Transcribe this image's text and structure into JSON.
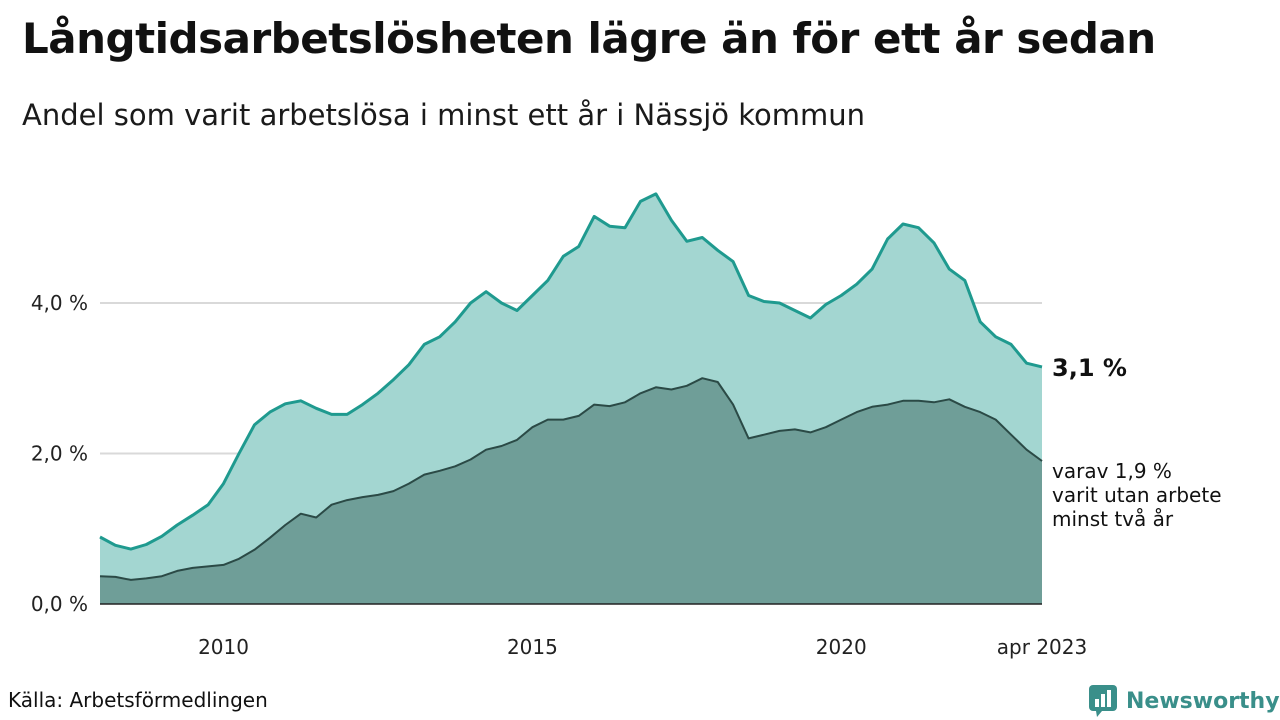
{
  "title": "Långtidsarbetslösheten lägre än för ett år sedan",
  "subtitle": "Andel som varit arbetslösa i minst ett år i Nässjö kommun",
  "source": "Källa: Arbetsförmedlingen",
  "brand": "Newsworthy",
  "colors": {
    "upper_fill": "#a3d6d1",
    "upper_line": "#1f9a8f",
    "lower_fill": "#6f9e98",
    "lower_line": "#2b4a46",
    "grid": "#d9d9d9",
    "brand": "#3a8f8a"
  },
  "chart_data": {
    "type": "area",
    "x_start": "2008-01",
    "x_end": "2023-04",
    "x_tick_labels": [
      "2010",
      "2015",
      "2020",
      "apr 2023"
    ],
    "x_tick_dates": [
      "2010-01",
      "2015-01",
      "2020-01",
      "2023-04"
    ],
    "y_tick_labels": [
      "0,0 %",
      "2,0 %",
      "4,0 %"
    ],
    "y_ticks": [
      0,
      2,
      4
    ],
    "ylim": [
      0,
      5.9
    ],
    "grid": true,
    "series": [
      {
        "label": "3,1 %",
        "points": [
          [
            "2008-01",
            0.89
          ],
          [
            "2008-04",
            0.78
          ],
          [
            "2008-07",
            0.73
          ],
          [
            "2008-10",
            0.79
          ],
          [
            "2009-01",
            0.9
          ],
          [
            "2009-04",
            1.05
          ],
          [
            "2009-07",
            1.18
          ],
          [
            "2009-10",
            1.32
          ],
          [
            "2010-01",
            1.6
          ],
          [
            "2010-04",
            2.0
          ],
          [
            "2010-07",
            2.38
          ],
          [
            "2010-10",
            2.55
          ],
          [
            "2011-01",
            2.66
          ],
          [
            "2011-04",
            2.7
          ],
          [
            "2011-07",
            2.6
          ],
          [
            "2011-10",
            2.52
          ],
          [
            "2012-01",
            2.52
          ],
          [
            "2012-04",
            2.65
          ],
          [
            "2012-07",
            2.8
          ],
          [
            "2012-10",
            2.98
          ],
          [
            "2013-01",
            3.18
          ],
          [
            "2013-04",
            3.45
          ],
          [
            "2013-07",
            3.55
          ],
          [
            "2013-10",
            3.75
          ],
          [
            "2014-01",
            4.0
          ],
          [
            "2014-04",
            4.15
          ],
          [
            "2014-07",
            4.0
          ],
          [
            "2014-10",
            3.9
          ],
          [
            "2015-01",
            4.1
          ],
          [
            "2015-04",
            4.3
          ],
          [
            "2015-07",
            4.62
          ],
          [
            "2015-10",
            4.75
          ],
          [
            "2016-01",
            5.15
          ],
          [
            "2016-04",
            5.02
          ],
          [
            "2016-07",
            5.0
          ],
          [
            "2016-10",
            5.35
          ],
          [
            "2017-01",
            5.45
          ],
          [
            "2017-04",
            5.1
          ],
          [
            "2017-07",
            4.82
          ],
          [
            "2017-10",
            4.87
          ],
          [
            "2018-01",
            4.7
          ],
          [
            "2018-04",
            4.55
          ],
          [
            "2018-07",
            4.1
          ],
          [
            "2018-10",
            4.02
          ],
          [
            "2019-01",
            4.0
          ],
          [
            "2019-04",
            3.9
          ],
          [
            "2019-07",
            3.8
          ],
          [
            "2019-10",
            3.98
          ],
          [
            "2020-01",
            4.1
          ],
          [
            "2020-04",
            4.25
          ],
          [
            "2020-07",
            4.45
          ],
          [
            "2020-10",
            4.85
          ],
          [
            "2021-01",
            5.05
          ],
          [
            "2021-04",
            5.0
          ],
          [
            "2021-07",
            4.8
          ],
          [
            "2021-10",
            4.45
          ],
          [
            "2022-01",
            4.3
          ],
          [
            "2022-04",
            3.75
          ],
          [
            "2022-07",
            3.55
          ],
          [
            "2022-10",
            3.45
          ],
          [
            "2023-01",
            3.2
          ],
          [
            "2023-04",
            3.15
          ]
        ]
      },
      {
        "label": "varav 1,9 %",
        "description": [
          "varav 1,9 %",
          "varit utan arbete",
          "minst två år"
        ],
        "points": [
          [
            "2008-01",
            0.37
          ],
          [
            "2008-04",
            0.36
          ],
          [
            "2008-07",
            0.32
          ],
          [
            "2008-10",
            0.34
          ],
          [
            "2009-01",
            0.37
          ],
          [
            "2009-04",
            0.44
          ],
          [
            "2009-07",
            0.48
          ],
          [
            "2009-10",
            0.5
          ],
          [
            "2010-01",
            0.52
          ],
          [
            "2010-04",
            0.6
          ],
          [
            "2010-07",
            0.72
          ],
          [
            "2010-10",
            0.88
          ],
          [
            "2011-01",
            1.05
          ],
          [
            "2011-04",
            1.2
          ],
          [
            "2011-07",
            1.15
          ],
          [
            "2011-10",
            1.32
          ],
          [
            "2012-01",
            1.38
          ],
          [
            "2012-04",
            1.42
          ],
          [
            "2012-07",
            1.45
          ],
          [
            "2012-10",
            1.5
          ],
          [
            "2013-01",
            1.6
          ],
          [
            "2013-04",
            1.72
          ],
          [
            "2013-07",
            1.77
          ],
          [
            "2013-10",
            1.83
          ],
          [
            "2014-01",
            1.92
          ],
          [
            "2014-04",
            2.05
          ],
          [
            "2014-07",
            2.1
          ],
          [
            "2014-10",
            2.18
          ],
          [
            "2015-01",
            2.35
          ],
          [
            "2015-04",
            2.45
          ],
          [
            "2015-07",
            2.45
          ],
          [
            "2015-10",
            2.5
          ],
          [
            "2016-01",
            2.65
          ],
          [
            "2016-04",
            2.63
          ],
          [
            "2016-07",
            2.68
          ],
          [
            "2016-10",
            2.8
          ],
          [
            "2017-01",
            2.88
          ],
          [
            "2017-04",
            2.85
          ],
          [
            "2017-07",
            2.9
          ],
          [
            "2017-10",
            3.0
          ],
          [
            "2018-01",
            2.95
          ],
          [
            "2018-04",
            2.65
          ],
          [
            "2018-07",
            2.2
          ],
          [
            "2018-10",
            2.25
          ],
          [
            "2019-01",
            2.3
          ],
          [
            "2019-04",
            2.32
          ],
          [
            "2019-07",
            2.28
          ],
          [
            "2019-10",
            2.35
          ],
          [
            "2020-01",
            2.45
          ],
          [
            "2020-04",
            2.55
          ],
          [
            "2020-07",
            2.62
          ],
          [
            "2020-10",
            2.65
          ],
          [
            "2021-01",
            2.7
          ],
          [
            "2021-04",
            2.7
          ],
          [
            "2021-07",
            2.68
          ],
          [
            "2021-10",
            2.72
          ],
          [
            "2022-01",
            2.62
          ],
          [
            "2022-04",
            2.55
          ],
          [
            "2022-07",
            2.45
          ],
          [
            "2022-10",
            2.25
          ],
          [
            "2023-01",
            2.05
          ],
          [
            "2023-04",
            1.9
          ]
        ]
      }
    ]
  }
}
